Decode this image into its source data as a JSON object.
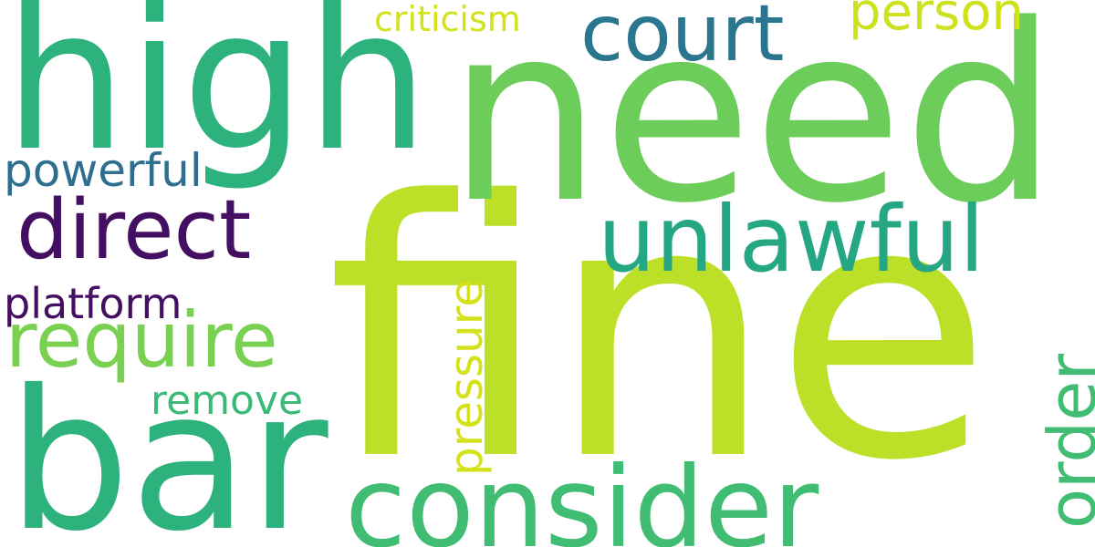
{
  "words": {
    "fine": "fine",
    "need": "need",
    "high": "high",
    "bar": "bar",
    "consider": "consider",
    "court": "court",
    "unlawful": "unlawful",
    "direct": "direct",
    "require": "require",
    "order": "order",
    "pressure": "pressure",
    "powerful": "powerful",
    "platform": "platform",
    "person": "person",
    "criticism": "criticism",
    "remove": "remove"
  },
  "colors": {
    "fine": "#bcdf27",
    "need": "#6ccd5a",
    "high": "#2db27d",
    "bar": "#2db27d",
    "consider": "#40bd72",
    "court": "#2a768e",
    "unlawful": "#25a784",
    "direct": "#440f62",
    "require": "#7ad151",
    "order": "#40bd72",
    "pressure": "#d4e21b",
    "powerful": "#2e6e8e",
    "platform": "#440f62",
    "person": "#cde11d",
    "criticism": "#d2e21b",
    "remove": "#3aba76"
  }
}
